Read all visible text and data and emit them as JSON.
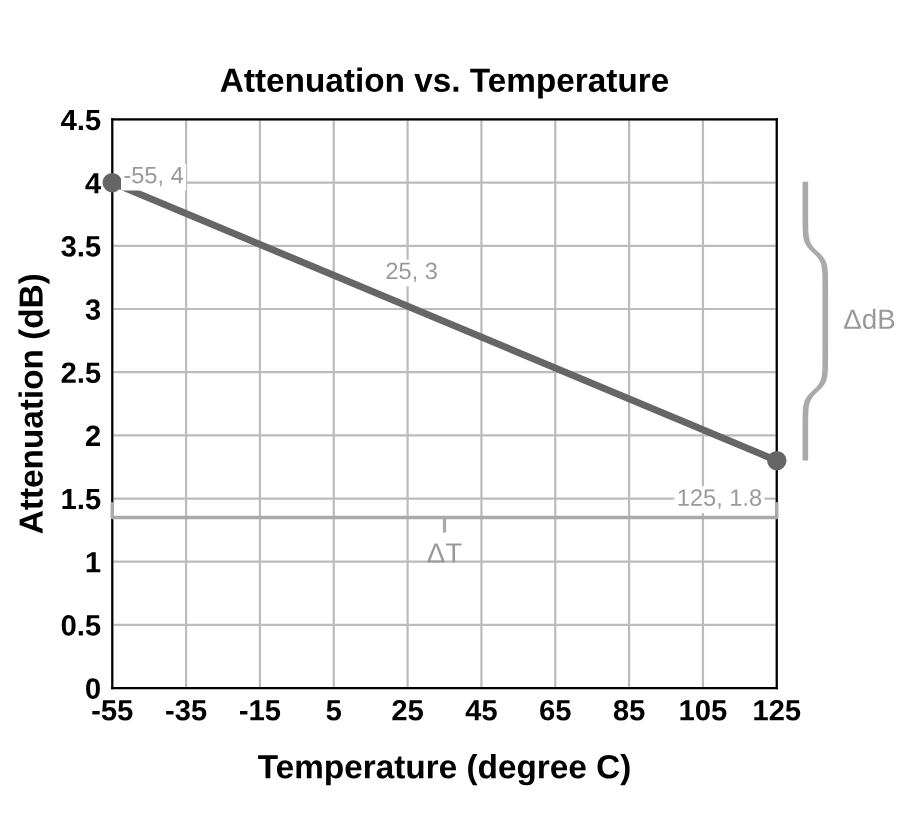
{
  "chart_data": {
    "type": "line",
    "title": "Attenuation vs. Temperature",
    "xlabel": "Temperature (degree C)",
    "ylabel": "Attenuation (dB)",
    "series": [
      {
        "color": "#666666",
        "x": [
          -55,
          125
        ],
        "values": [
          4,
          1.8
        ]
      }
    ],
    "xlim": [
      -55,
      125
    ],
    "ylim": [
      0,
      4.5
    ],
    "xticks": [
      -55,
      -35,
      -15,
      5,
      25,
      45,
      65,
      85,
      105,
      125
    ],
    "yticks": [
      0,
      0.5,
      1,
      1.5,
      2,
      2.5,
      3,
      3.5,
      4,
      4.5
    ],
    "grid": true,
    "marker": "circle",
    "line_style": "solid",
    "annotations": [
      {
        "text": "-55, 4",
        "x": -55,
        "y": 4
      },
      {
        "text": "25, 3",
        "x": 25,
        "y": 3
      },
      {
        "text": "125, 1.8",
        "x": 125,
        "y": 1.8
      },
      "ΔdB",
      "ΔT"
    ]
  }
}
